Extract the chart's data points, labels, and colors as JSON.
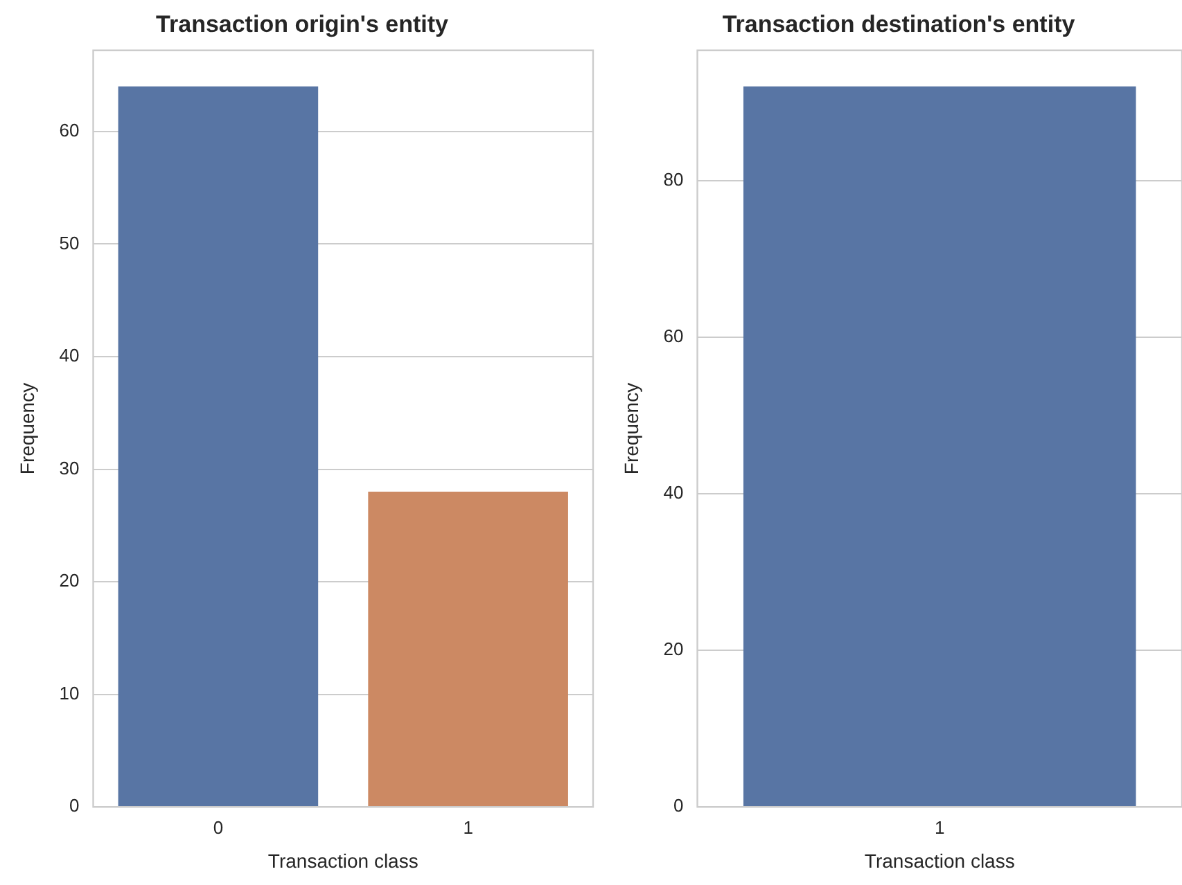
{
  "chart_data": [
    {
      "type": "bar",
      "title": "Transaction origin's entity",
      "xlabel": "Transaction class",
      "ylabel": "Frequency",
      "categories": [
        "0",
        "1"
      ],
      "values": [
        64,
        28
      ],
      "colors": [
        "#5875a4",
        "#cc8963"
      ],
      "ylim": [
        0,
        67.2
      ],
      "yticks": [
        0,
        10,
        20,
        30,
        40,
        50,
        60
      ],
      "grid": "y"
    },
    {
      "type": "bar",
      "title": "Transaction destination's entity",
      "xlabel": "Transaction class",
      "ylabel": "Frequency",
      "categories": [
        "1"
      ],
      "values": [
        92
      ],
      "colors": [
        "#5875a4"
      ],
      "ylim": [
        0,
        96.6
      ],
      "yticks": [
        0,
        20,
        40,
        60,
        80
      ],
      "grid": "y"
    }
  ]
}
